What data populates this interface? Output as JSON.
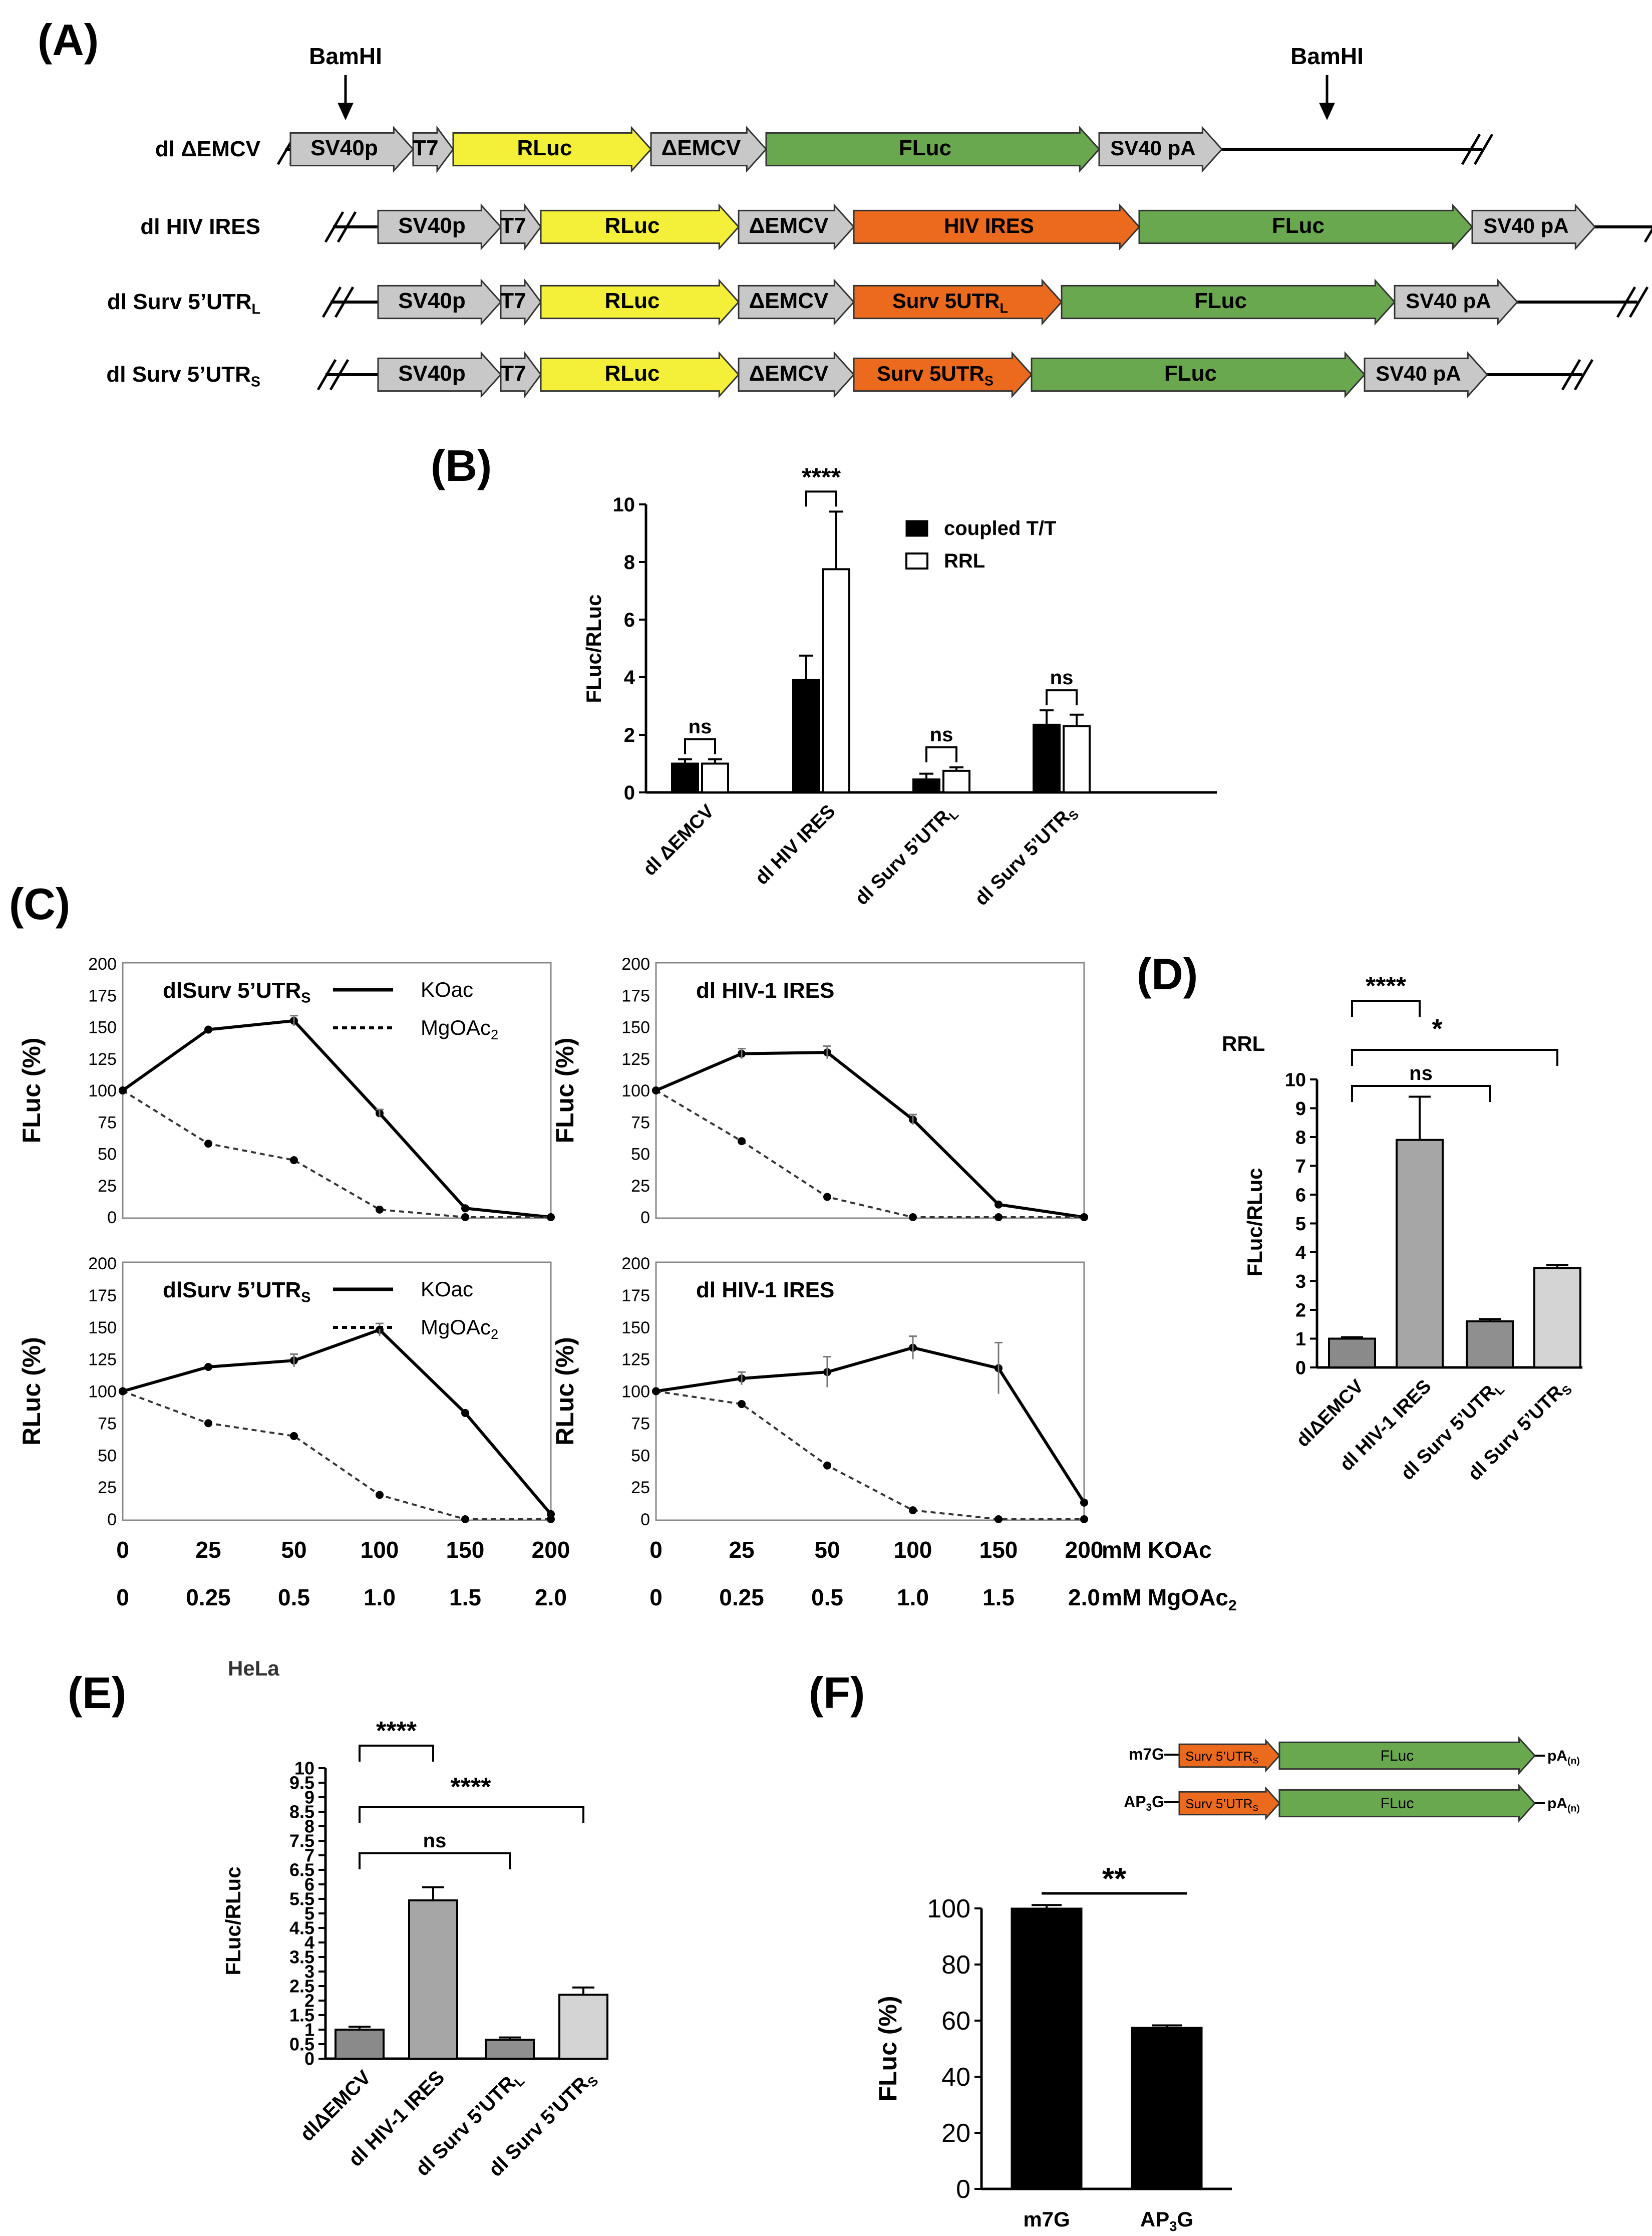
{
  "panels": {
    "A": "(A)",
    "B": "(B)",
    "C": "(C)",
    "D": "(D)",
    "E": "(E)",
    "F": "(F)"
  },
  "constructs": {
    "site_label": "BamHI",
    "rows": [
      {
        "name": "dl ΔEMCV",
        "sub": "",
        "elements": [
          {
            "kind": "grey",
            "text": "SV40p"
          },
          {
            "kind": "grey",
            "text": "T7"
          },
          {
            "kind": "yellow",
            "text": "RLuc"
          },
          {
            "kind": "grey",
            "text": "ΔEMCV"
          },
          {
            "kind": "green",
            "text": "FLuc"
          },
          {
            "kind": "grey",
            "text": "SV40 pA"
          }
        ]
      },
      {
        "name": "dl HIV IRES",
        "sub": "",
        "elements": [
          {
            "kind": "grey",
            "text": "SV40p"
          },
          {
            "kind": "grey",
            "text": "T7"
          },
          {
            "kind": "yellow",
            "text": "RLuc"
          },
          {
            "kind": "grey",
            "text": "ΔEMCV"
          },
          {
            "kind": "orange",
            "text": "HIV IRES"
          },
          {
            "kind": "green",
            "text": "FLuc"
          },
          {
            "kind": "grey",
            "text": "SV40 pA"
          }
        ]
      },
      {
        "name": "dl Surv 5’UTR",
        "sub": "L",
        "elements": [
          {
            "kind": "grey",
            "text": "SV40p"
          },
          {
            "kind": "grey",
            "text": "T7"
          },
          {
            "kind": "yellow",
            "text": "RLuc"
          },
          {
            "kind": "grey",
            "text": "ΔEMCV"
          },
          {
            "kind": "orange",
            "text": "Surv 5UTR",
            "sub": "L"
          },
          {
            "kind": "green",
            "text": "FLuc"
          },
          {
            "kind": "grey",
            "text": "SV40 pA"
          }
        ]
      },
      {
        "name": "dl Surv 5’UTR",
        "sub": "S",
        "elements": [
          {
            "kind": "grey",
            "text": "SV40p"
          },
          {
            "kind": "grey",
            "text": "T7"
          },
          {
            "kind": "yellow",
            "text": "RLuc"
          },
          {
            "kind": "grey",
            "text": "ΔEMCV"
          },
          {
            "kind": "orange",
            "text": "Surv 5UTR",
            "sub": "S"
          },
          {
            "kind": "green",
            "text": "FLuc"
          },
          {
            "kind": "grey",
            "text": "SV40 pA"
          }
        ]
      }
    ]
  },
  "colors": {
    "grey": "#c8c8c8",
    "yellow": "#f4f03a",
    "green": "#6aa84f",
    "orange": "#ec6a1e",
    "bar_black": "#000000",
    "bar_dark": "#8a8a8a",
    "bar_mid": "#a6a6a6",
    "bar_light": "#d4d4d4"
  },
  "chart_data": [
    {
      "id": "B",
      "type": "bar",
      "ylabel": "FLuc/RLuc",
      "ylim": [
        0,
        10
      ],
      "yticks": [
        0,
        2,
        4,
        6,
        8,
        10
      ],
      "categories": [
        {
          "main": "dl ΔEMCV",
          "sub": ""
        },
        {
          "main": "dl HIV IRES",
          "sub": ""
        },
        {
          "main": "dl Surv 5’UTR",
          "sub": "L"
        },
        {
          "main": "dl Surv 5’UTR",
          "sub": "S"
        }
      ],
      "series": [
        {
          "name": "coupled T/T",
          "values": [
            1.0,
            3.9,
            0.45,
            2.35
          ],
          "errors": [
            0.15,
            0.85,
            0.2,
            0.5
          ]
        },
        {
          "name": "RRL",
          "values": [
            1.0,
            7.75,
            0.75,
            2.3
          ],
          "errors": [
            0.15,
            2.0,
            0.12,
            0.4
          ]
        }
      ],
      "significance": [
        "ns",
        "****",
        "ns",
        "ns"
      ]
    },
    {
      "id": "C1",
      "type": "line",
      "title": "dlSurv 5’UTR",
      "title_sub": "S",
      "ylabel": "FLuc (%)",
      "ylim": [
        0,
        200
      ],
      "yticks": [
        0,
        25,
        50,
        75,
        100,
        125,
        150,
        175,
        200
      ],
      "series": [
        {
          "name": "KOac",
          "values": [
            100,
            148,
            155,
            82,
            7,
            0
          ],
          "errors": [
            0,
            0,
            4,
            3,
            0,
            0
          ]
        },
        {
          "name": "MgOAc",
          "name_sub": "2",
          "values": [
            100,
            58,
            45,
            6,
            0,
            0
          ],
          "errors": [
            0,
            0,
            0,
            0,
            0,
            0
          ]
        }
      ]
    },
    {
      "id": "C2",
      "type": "line",
      "title": "dl HIV-1 IRES",
      "title_sub": "",
      "ylabel": "FLuc (%)",
      "ylim": [
        0,
        200
      ],
      "yticks": [
        0,
        25,
        50,
        75,
        100,
        125,
        150,
        175,
        200
      ],
      "series": [
        {
          "name": "KOac",
          "values": [
            100,
            129,
            130,
            77,
            10,
            0
          ],
          "errors": [
            0,
            4,
            5,
            4,
            0,
            0
          ]
        },
        {
          "name": "MgOAc",
          "name_sub": "2",
          "values": [
            100,
            60,
            16,
            0,
            0,
            0
          ],
          "errors": [
            0,
            0,
            0,
            0,
            0,
            0
          ]
        }
      ]
    },
    {
      "id": "C3",
      "type": "line",
      "title": "dlSurv 5’UTR",
      "title_sub": "S",
      "ylabel": "RLuc (%)",
      "ylim": [
        0,
        200
      ],
      "yticks": [
        0,
        25,
        50,
        75,
        100,
        125,
        150,
        175,
        200
      ],
      "series": [
        {
          "name": "KOac",
          "values": [
            100,
            119,
            124,
            148,
            83,
            4
          ],
          "errors": [
            0,
            0,
            5,
            5,
            0,
            0
          ]
        },
        {
          "name": "MgOAc",
          "name_sub": "2",
          "values": [
            100,
            75,
            65,
            19,
            0,
            0
          ],
          "errors": [
            0,
            0,
            0,
            0,
            0,
            0
          ]
        }
      ]
    },
    {
      "id": "C4",
      "type": "line",
      "title": "dl HIV-1 IRES",
      "title_sub": "",
      "ylabel": "RLuc (%)",
      "ylim": [
        0,
        200
      ],
      "yticks": [
        0,
        25,
        50,
        75,
        100,
        125,
        150,
        175,
        200
      ],
      "series": [
        {
          "name": "KOac",
          "values": [
            100,
            110,
            115,
            134,
            118,
            13
          ],
          "errors": [
            0,
            5,
            12,
            9,
            20,
            0
          ]
        },
        {
          "name": "MgOAc",
          "name_sub": "2",
          "values": [
            100,
            90,
            42,
            7,
            0,
            0
          ],
          "errors": [
            0,
            0,
            0,
            0,
            0,
            0
          ]
        }
      ]
    },
    {
      "id": "D",
      "type": "bar",
      "title": "RRL",
      "ylabel": "FLuc/RLuc",
      "ylim": [
        0,
        10
      ],
      "yticks": [
        0,
        1,
        2,
        3,
        4,
        5,
        6,
        7,
        8,
        9,
        10
      ],
      "categories": [
        {
          "main": "dlΔEMCV",
          "sub": ""
        },
        {
          "main": "dl HIV-1 IRES",
          "sub": ""
        },
        {
          "main": "dl Surv 5’UTR",
          "sub": "L"
        },
        {
          "main": "dl Surv 5’UTR",
          "sub": "S"
        }
      ],
      "values": [
        1.0,
        7.9,
        1.6,
        3.45
      ],
      "errors": [
        0.05,
        1.5,
        0.08,
        0.1
      ],
      "significance": [
        {
          "from": 0,
          "to": 1,
          "label": "****"
        },
        {
          "from": 0,
          "to": 3,
          "label": "*"
        },
        {
          "from": 0,
          "to": 2,
          "label": "ns"
        }
      ]
    },
    {
      "id": "E",
      "type": "bar",
      "title": "HeLa",
      "ylabel": "FLuc/RLuc",
      "ylim": [
        0,
        10
      ],
      "yticks": [
        0,
        0.5,
        1,
        1.5,
        2,
        2.5,
        3,
        3.5,
        4,
        4.5,
        5,
        5.5,
        6,
        6.5,
        7,
        7.5,
        8,
        8.5,
        9,
        9.5,
        10
      ],
      "categories": [
        {
          "main": "dlΔEMCV",
          "sub": ""
        },
        {
          "main": "dl HIV-1 IRES",
          "sub": ""
        },
        {
          "main": "dl Surv 5’UTR",
          "sub": "L"
        },
        {
          "main": "dl Surv 5’UTR",
          "sub": "S"
        }
      ],
      "values": [
        1.0,
        5.45,
        0.65,
        2.2
      ],
      "errors": [
        0.1,
        0.45,
        0.08,
        0.25
      ],
      "significance": [
        {
          "from": 0,
          "to": 1,
          "label": "****"
        },
        {
          "from": 0,
          "to": 3,
          "label": "****"
        },
        {
          "from": 0,
          "to": 2,
          "label": "ns"
        }
      ]
    },
    {
      "id": "F",
      "type": "bar",
      "ylabel": "FLuc (%)",
      "ylim": [
        0,
        100
      ],
      "yticks": [
        0,
        20,
        40,
        60,
        80,
        100
      ],
      "categories": [
        {
          "main": "m7G",
          "sub": ""
        },
        {
          "main": "AP",
          "sub": "3",
          "tail": "G"
        }
      ],
      "values": [
        100,
        57.5
      ],
      "errors": [
        1.2,
        0.8
      ],
      "significance": [
        {
          "from": 0,
          "to": 1,
          "label": "**"
        }
      ]
    }
  ],
  "panelC_x": {
    "koac_labels": [
      "0",
      "25",
      "50",
      "100",
      "150",
      "200"
    ],
    "mg_labels": [
      "0",
      "0.25",
      "0.5",
      "1.0",
      "1.5",
      "2.0"
    ],
    "koac_unit": "mM KOAc",
    "mg_unit": "mM MgOAc",
    "mg_unit_sub": "2"
  },
  "panelF_diagram": {
    "rows": [
      {
        "cap": "m7G",
        "cap_sub": "",
        "cap_tail": "",
        "utr": "Surv 5’UTR",
        "utr_sub": "S",
        "fluc": "FLuc",
        "tail": "pA",
        "tail_sub": "(n)"
      },
      {
        "cap": "AP",
        "cap_sub": "3",
        "cap_tail": "G",
        "utr": "Surv 5’UTR",
        "utr_sub": "S",
        "fluc": "FLuc",
        "tail": "pA",
        "tail_sub": "(n)"
      }
    ]
  }
}
